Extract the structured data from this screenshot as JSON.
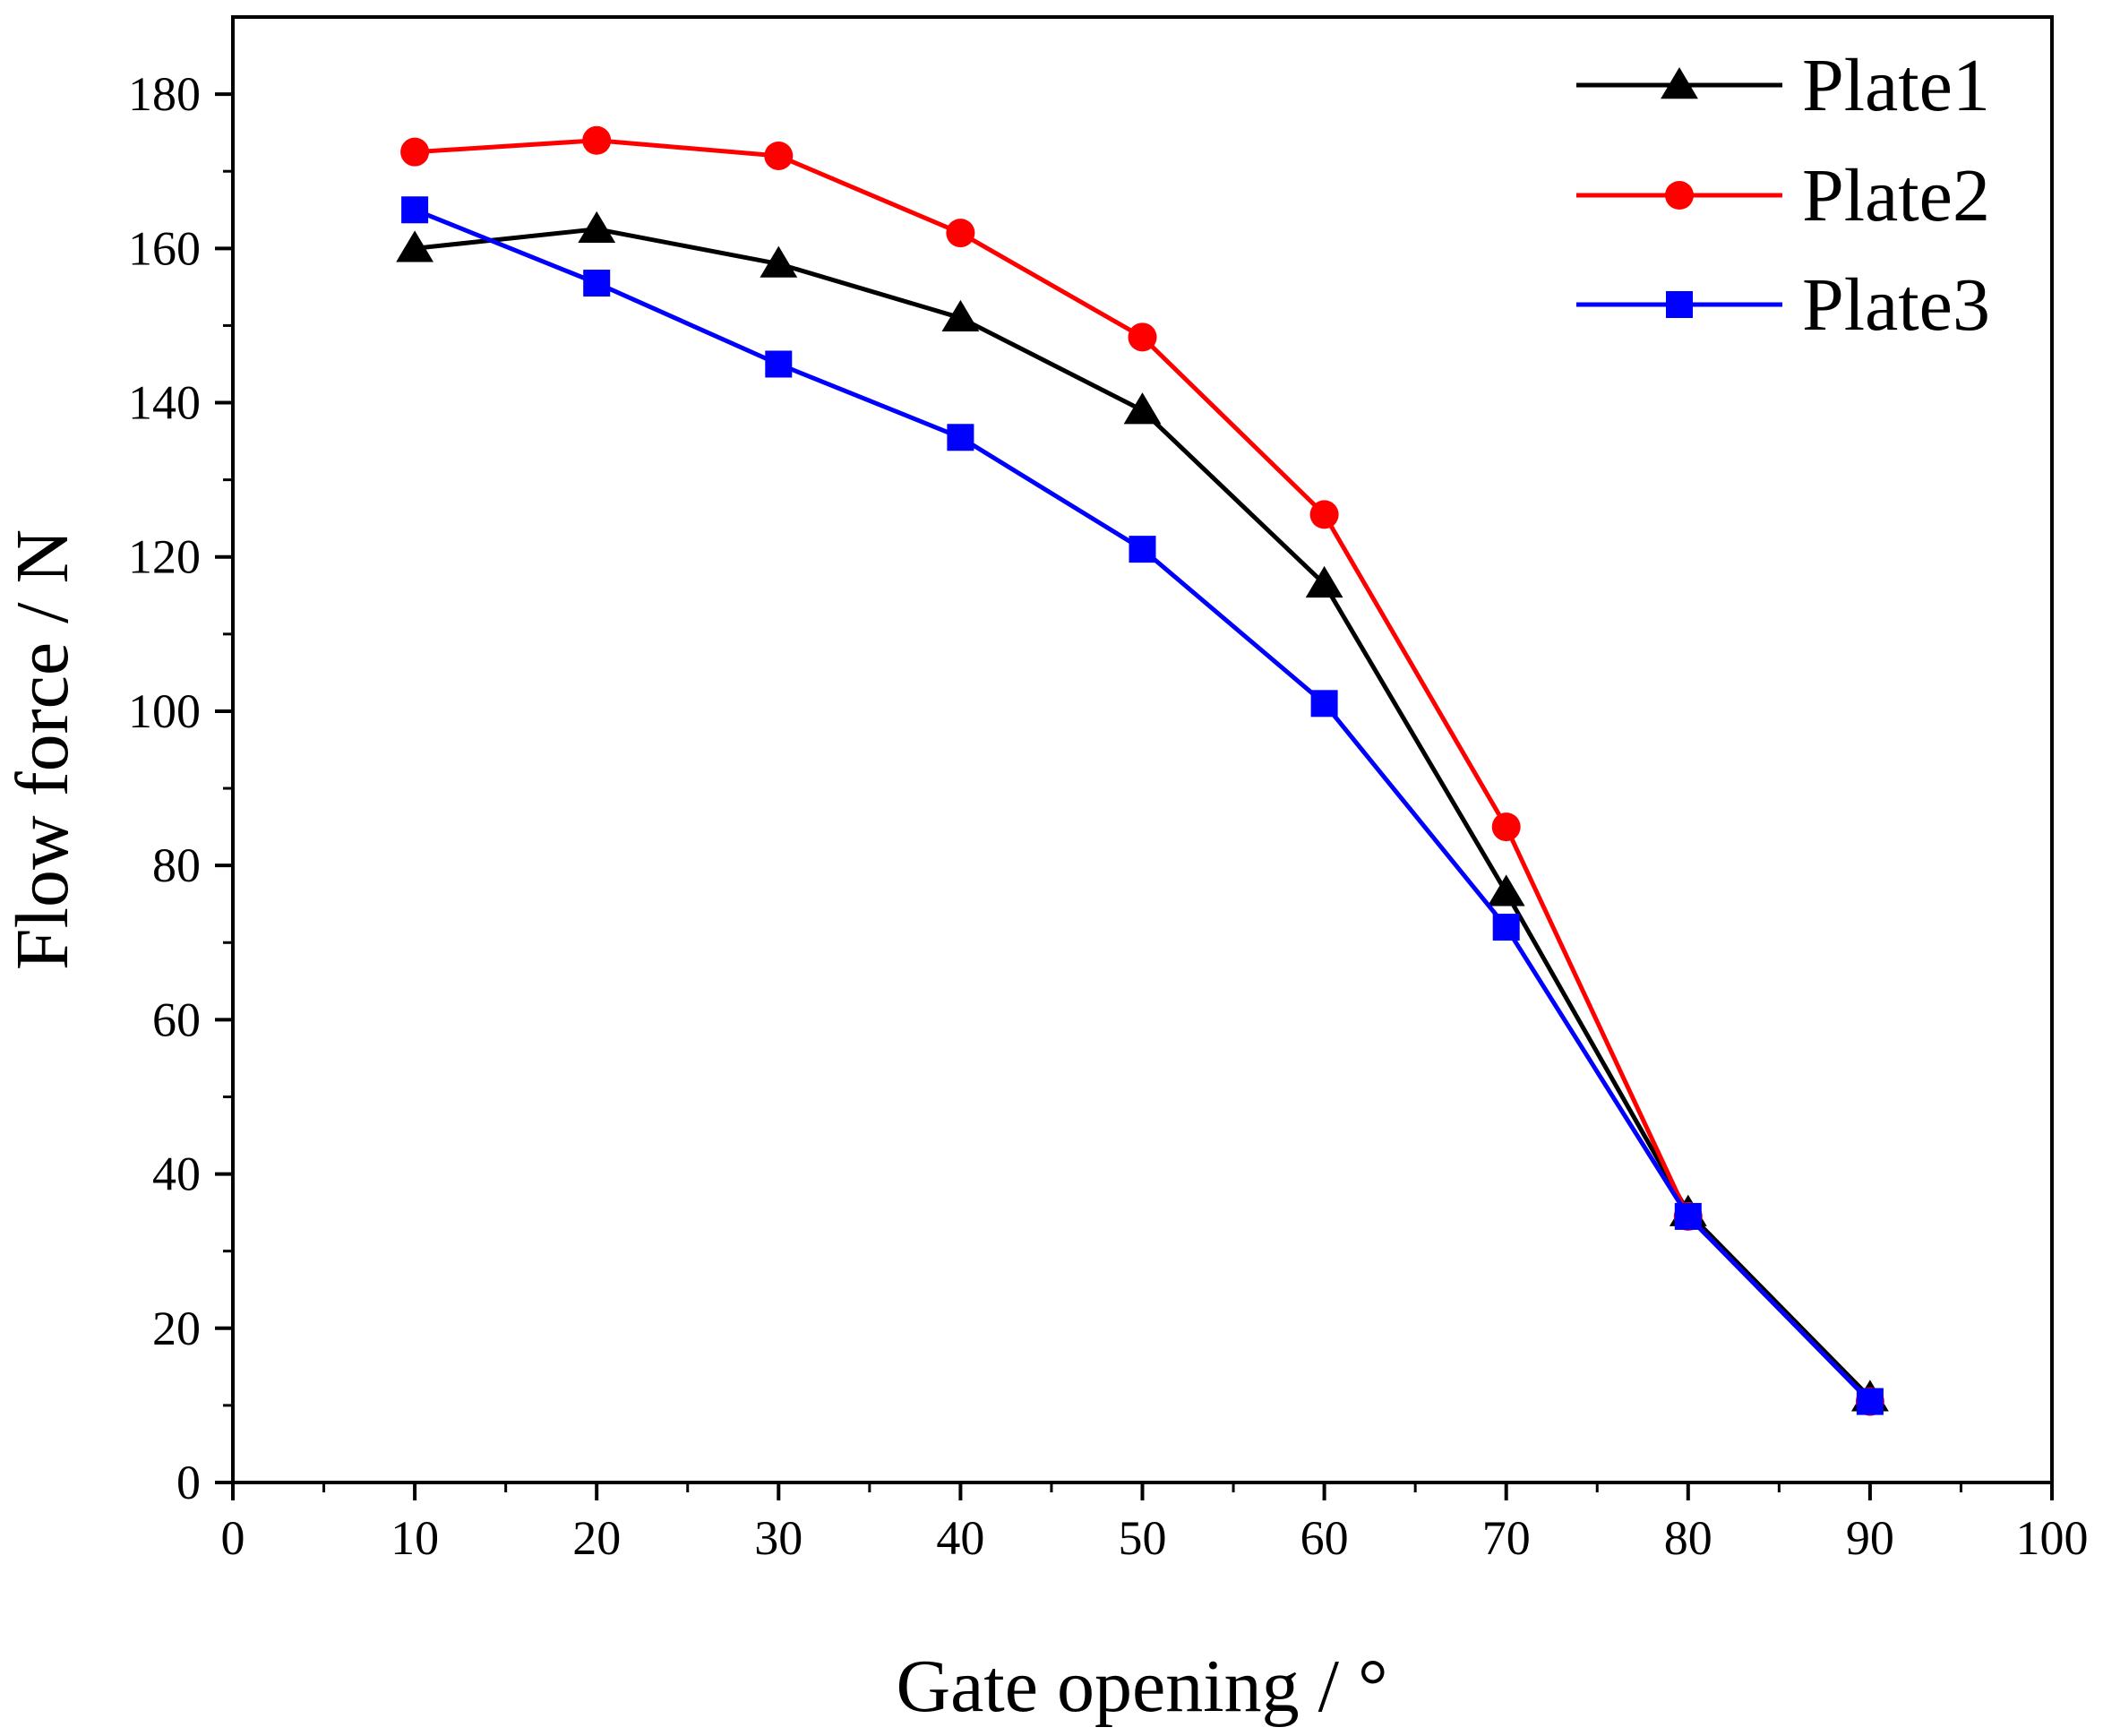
{
  "chart_data": {
    "type": "line",
    "title": "",
    "xlabel": "Gate opening / °",
    "ylabel": "Flow force / N",
    "xlim": [
      0,
      100
    ],
    "ylim": [
      0,
      190
    ],
    "x_ticks": [
      0,
      10,
      20,
      30,
      40,
      50,
      60,
      70,
      80,
      90,
      100
    ],
    "y_ticks": [
      0,
      20,
      40,
      60,
      80,
      100,
      120,
      140,
      160,
      180
    ],
    "x_minor_step": 5,
    "y_minor_step": 10,
    "grid": false,
    "legend_position": "top-right",
    "x": [
      10,
      20,
      30,
      40,
      50,
      60,
      70,
      80,
      90
    ],
    "series": [
      {
        "name": "Plate1",
        "color": "#000000",
        "marker": "triangle",
        "values": [
          160,
          162.5,
          158,
          151,
          139,
          116.5,
          76.5,
          35,
          11
        ]
      },
      {
        "name": "Plate2",
        "color": "#ff0000",
        "marker": "circle",
        "values": [
          172.5,
          174,
          172,
          162,
          148.5,
          125.5,
          85,
          34.5,
          10.5
        ]
      },
      {
        "name": "Plate3",
        "color": "#0000ff",
        "marker": "square",
        "values": [
          165,
          155.5,
          145,
          135.5,
          121,
          101,
          72,
          34.5,
          10.5
        ]
      }
    ]
  }
}
